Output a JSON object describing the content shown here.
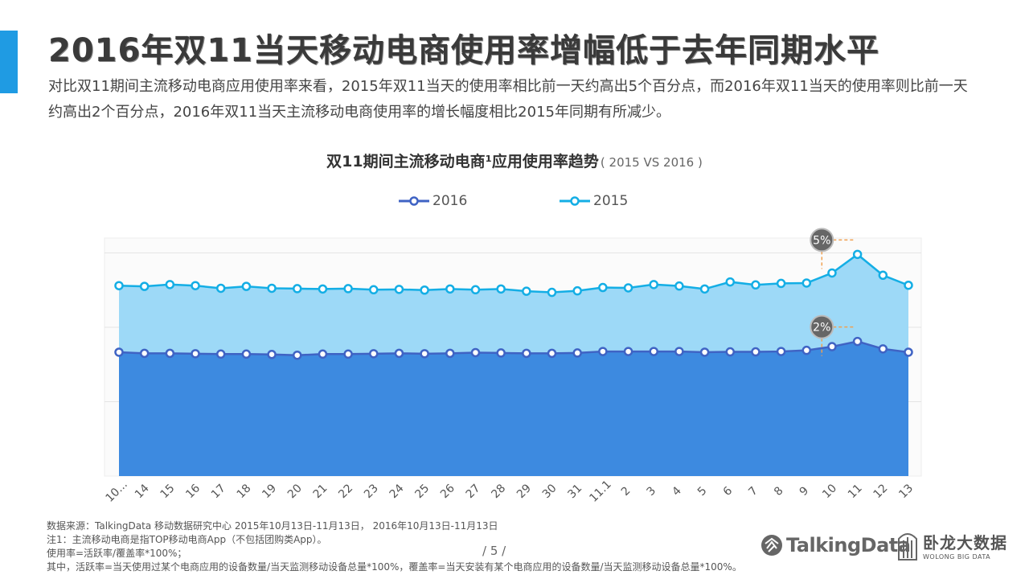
{
  "page": {
    "title": "2016年双11当天移动电商使用率增幅低于去年同期水平",
    "description": "对比双11期间主流移动电商应用使用率来看，2015年双11当天的使用率相比前一天约高出5个百分点，而2016年双11当天的使用率则比前一天约高出2个百分点，2016年双11当天主流移动电商使用率的增长幅度相比2015年同期有所减少。",
    "page_number": "/ 5 /"
  },
  "chart_data": {
    "type": "area",
    "title": "双11期间主流移动电商¹应用使用率趋势",
    "subtitle": "( 2015 VS 2016 )",
    "categories": [
      "10...",
      "14",
      "15",
      "16",
      "17",
      "18",
      "19",
      "20",
      "21",
      "22",
      "23",
      "24",
      "25",
      "26",
      "27",
      "28",
      "29",
      "30",
      "31",
      "11.1",
      "2",
      "3",
      "4",
      "5",
      "6",
      "7",
      "8",
      "9",
      "10",
      "11",
      "12",
      "13"
    ],
    "series": [
      {
        "name": "2016",
        "color": "#3f63c4",
        "fill": "#3d8ae0",
        "values": [
          33.3,
          33.0,
          33.0,
          32.9,
          32.8,
          32.8,
          32.7,
          32.5,
          32.8,
          32.8,
          32.9,
          33.0,
          32.9,
          33.0,
          33.2,
          33.1,
          33.0,
          33.0,
          33.1,
          33.5,
          33.5,
          33.5,
          33.5,
          33.3,
          33.4,
          33.4,
          33.5,
          33.8,
          34.8,
          36.2,
          34.2,
          33.3
        ]
      },
      {
        "name": "2015",
        "color": "#14aee5",
        "fill": "#9dd9f7",
        "values": [
          51.2,
          51.0,
          51.5,
          51.2,
          50.5,
          51.0,
          50.5,
          50.4,
          50.3,
          50.4,
          50.1,
          50.2,
          50.0,
          50.3,
          50.1,
          50.3,
          49.7,
          49.4,
          49.8,
          50.7,
          50.6,
          51.5,
          51.1,
          50.3,
          52.2,
          51.4,
          51.8,
          51.9,
          54.6,
          59.6,
          54.0,
          51.3
        ]
      }
    ],
    "annotations": [
      {
        "label": "5%",
        "series": "2015",
        "category_index": 29
      },
      {
        "label": "2%",
        "series": "2016",
        "category_index": 29
      }
    ],
    "ylim": [
      0,
      64
    ],
    "y_gridlines": [
      20,
      40,
      60
    ],
    "legend_position": "top-center"
  },
  "footnotes": [
    "数据来源：TalkingData 移动数据研究中心   2015年10月13日-11月13日，   2016年10月13日-11月13日",
    "注1：主流移动电商是指TOP移动电商App（不包括团购类App）。",
    "使用率=活跃率/覆盖率*100%；",
    "其中，活跃率=当天使用过某个电商应用的设备数量/当天监测移动设备总量*100%，覆盖率=当天安装有某个电商应用的设备数量/当天监测移动设备总量*100%。"
  ],
  "logos": {
    "talkingdata": "TalkingData",
    "wolong_cn": "卧龙大数据",
    "wolong_en": "WOLONG BIG DATA"
  },
  "colors": {
    "accent": "#1f9be3",
    "annotation_badge": "#666666",
    "annotation_guide": "#f0a050"
  }
}
